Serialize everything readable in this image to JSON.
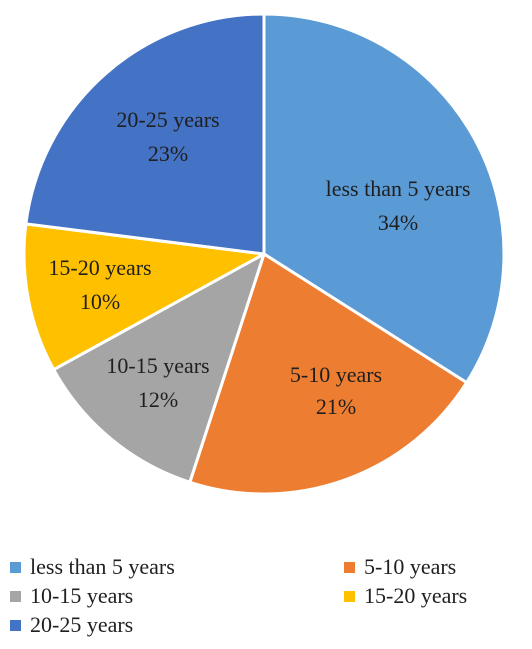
{
  "chart_data": {
    "type": "pie",
    "title": "",
    "slices": [
      {
        "label": "less than 5 years",
        "value": 34,
        "display": "34%",
        "color": "#5B9BD5"
      },
      {
        "label": "5-10 years",
        "value": 21,
        "display": "21%",
        "color": "#ED7D31"
      },
      {
        "label": "10-15 years",
        "value": 12,
        "display": "12%",
        "color": "#A5A5A5"
      },
      {
        "label": "15-20 years",
        "value": 10,
        "display": "10%",
        "color": "#FFC000"
      },
      {
        "label": "20-25 years",
        "value": 23,
        "display": "23%",
        "color": "#4472C4"
      }
    ],
    "legend_position": "bottom"
  }
}
